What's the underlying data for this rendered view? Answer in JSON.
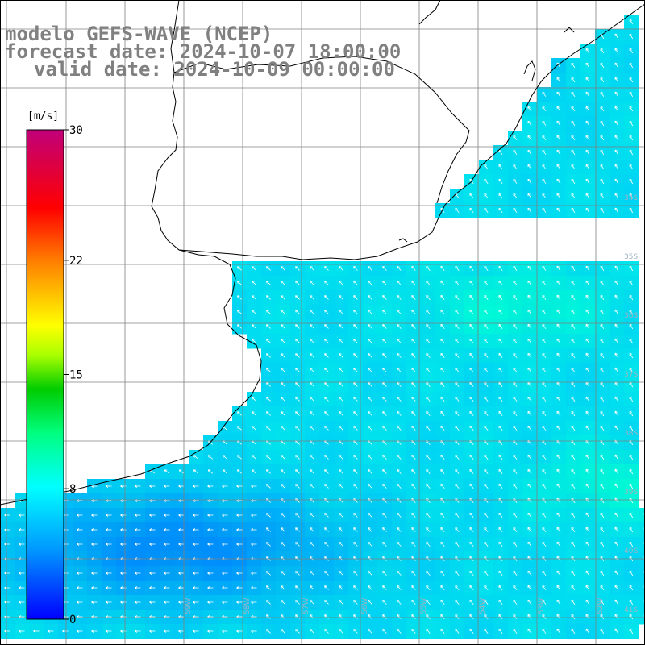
{
  "title": {
    "line1": "modelo GEFS-WAVE (NCEP)",
    "line2": "forecast date: 2024-10-07 18:00:00",
    "line3": "valid date: 2024-10-09 00:00:00"
  },
  "colorbar": {
    "unit": "[m/s]",
    "ticks": [
      {
        "value": 30,
        "label": "30"
      },
      {
        "value": 22,
        "label": "22"
      },
      {
        "value": 15,
        "label": "15"
      },
      {
        "value": 8,
        "label": "8"
      },
      {
        "value": 0,
        "label": "0"
      }
    ],
    "min": 0,
    "max": 30
  },
  "axes": {
    "lat_labels": [
      "34S",
      "35S",
      "36S",
      "37S",
      "38S",
      "39S",
      "40S",
      "41S"
    ],
    "lon_labels": [
      "59W",
      "58W",
      "57W",
      "56W",
      "55W",
      "54W",
      "53W",
      "52W"
    ]
  },
  "colors": {
    "land": "#ffffff",
    "grid": "#808080",
    "coast": "#000000",
    "arrow": "#ffffff"
  }
}
